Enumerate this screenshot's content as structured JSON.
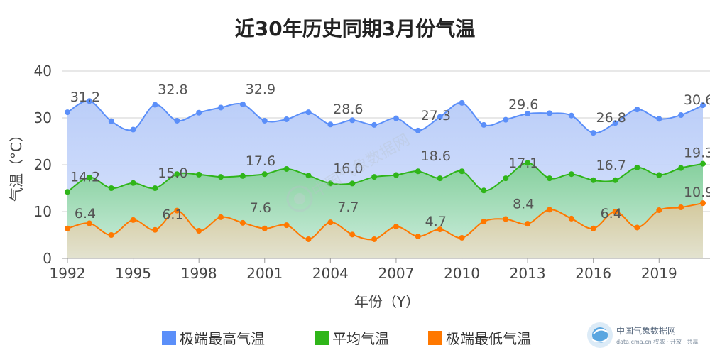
{
  "chart_data": {
    "type": "area",
    "title": "近30年历史同期3月份气温",
    "xlabel": "年份（Y）",
    "ylabel": "气温（°C）",
    "ylim": [
      0,
      40
    ],
    "yticks": [
      0,
      10,
      20,
      30,
      40
    ],
    "xticks": [
      1992,
      1995,
      1998,
      2001,
      2004,
      2007,
      2010,
      2013,
      2016,
      2019
    ],
    "grid": "horizontal",
    "legend_position": "bottom",
    "x": [
      1992,
      1993,
      1994,
      1995,
      1996,
      1997,
      1998,
      1999,
      2000,
      2001,
      2002,
      2003,
      2004,
      2005,
      2006,
      2007,
      2008,
      2009,
      2010,
      2011,
      2012,
      2013,
      2014,
      2015,
      2016,
      2017,
      2018,
      2019,
      2020,
      2021
    ],
    "series": [
      {
        "name": "极端最高气温",
        "color": "#5b8ff9",
        "fill_color": "#c5d5fb",
        "values": [
          31.2,
          33.6,
          29.3,
          27.5,
          32.8,
          29.4,
          31.1,
          32.2,
          32.9,
          29.4,
          29.7,
          31.2,
          28.6,
          29.5,
          28.5,
          29.9,
          27.3,
          30.2,
          33.2,
          28.5,
          29.6,
          30.9,
          31.0,
          30.5,
          26.8,
          28.9,
          31.8,
          29.8,
          30.6,
          32.7
        ],
        "labels": {
          "1992": "31.2",
          "1996": "32.8",
          "2000": "32.9",
          "2004": "28.6",
          "2008": "27.3",
          "2012": "29.6",
          "2016": "26.8",
          "2020": "30.6"
        }
      },
      {
        "name": "平均气温",
        "color": "#2fb519",
        "fill_color": "#8fd3a6",
        "values": [
          14.2,
          17.3,
          15.0,
          16.1,
          15.0,
          18.0,
          17.9,
          17.4,
          17.6,
          18.0,
          19.1,
          17.7,
          16.0,
          16.0,
          17.4,
          17.8,
          18.6,
          17.1,
          18.6,
          14.5,
          17.1,
          20.4,
          17.1,
          18.0,
          16.7,
          16.7,
          19.4,
          17.8,
          19.3,
          20.2
        ],
        "labels": {
          "1992": "14.2",
          "1996": "15.0",
          "2000": "17.6",
          "2004": "16.0",
          "2008": "18.6",
          "2012": "17.1",
          "2016": "16.7",
          "2020": "19.3"
        }
      },
      {
        "name": "极端最低气温",
        "color": "#ff7800",
        "fill_color": "#d9d2b3",
        "values": [
          6.4,
          7.5,
          5.0,
          8.2,
          6.1,
          10.2,
          5.9,
          8.8,
          7.6,
          6.4,
          7.1,
          4.1,
          7.7,
          5.1,
          4.1,
          6.8,
          4.7,
          6.2,
          4.4,
          7.9,
          8.4,
          7.4,
          10.4,
          8.5,
          6.4,
          10.0,
          6.6,
          10.3,
          10.9,
          11.8
        ],
        "labels": {
          "1992": "6.4",
          "1996": "6.1",
          "2000": "7.6",
          "2004": "7.7",
          "2008": "4.7",
          "2012": "8.4",
          "2016": "6.4",
          "2020": "10.9"
        }
      }
    ]
  },
  "watermark": {
    "brand": "中国气象数据网",
    "url_line": "data.cma.cn 权威 · 开放 · 共赢",
    "center_text": "中国气象数据网"
  }
}
